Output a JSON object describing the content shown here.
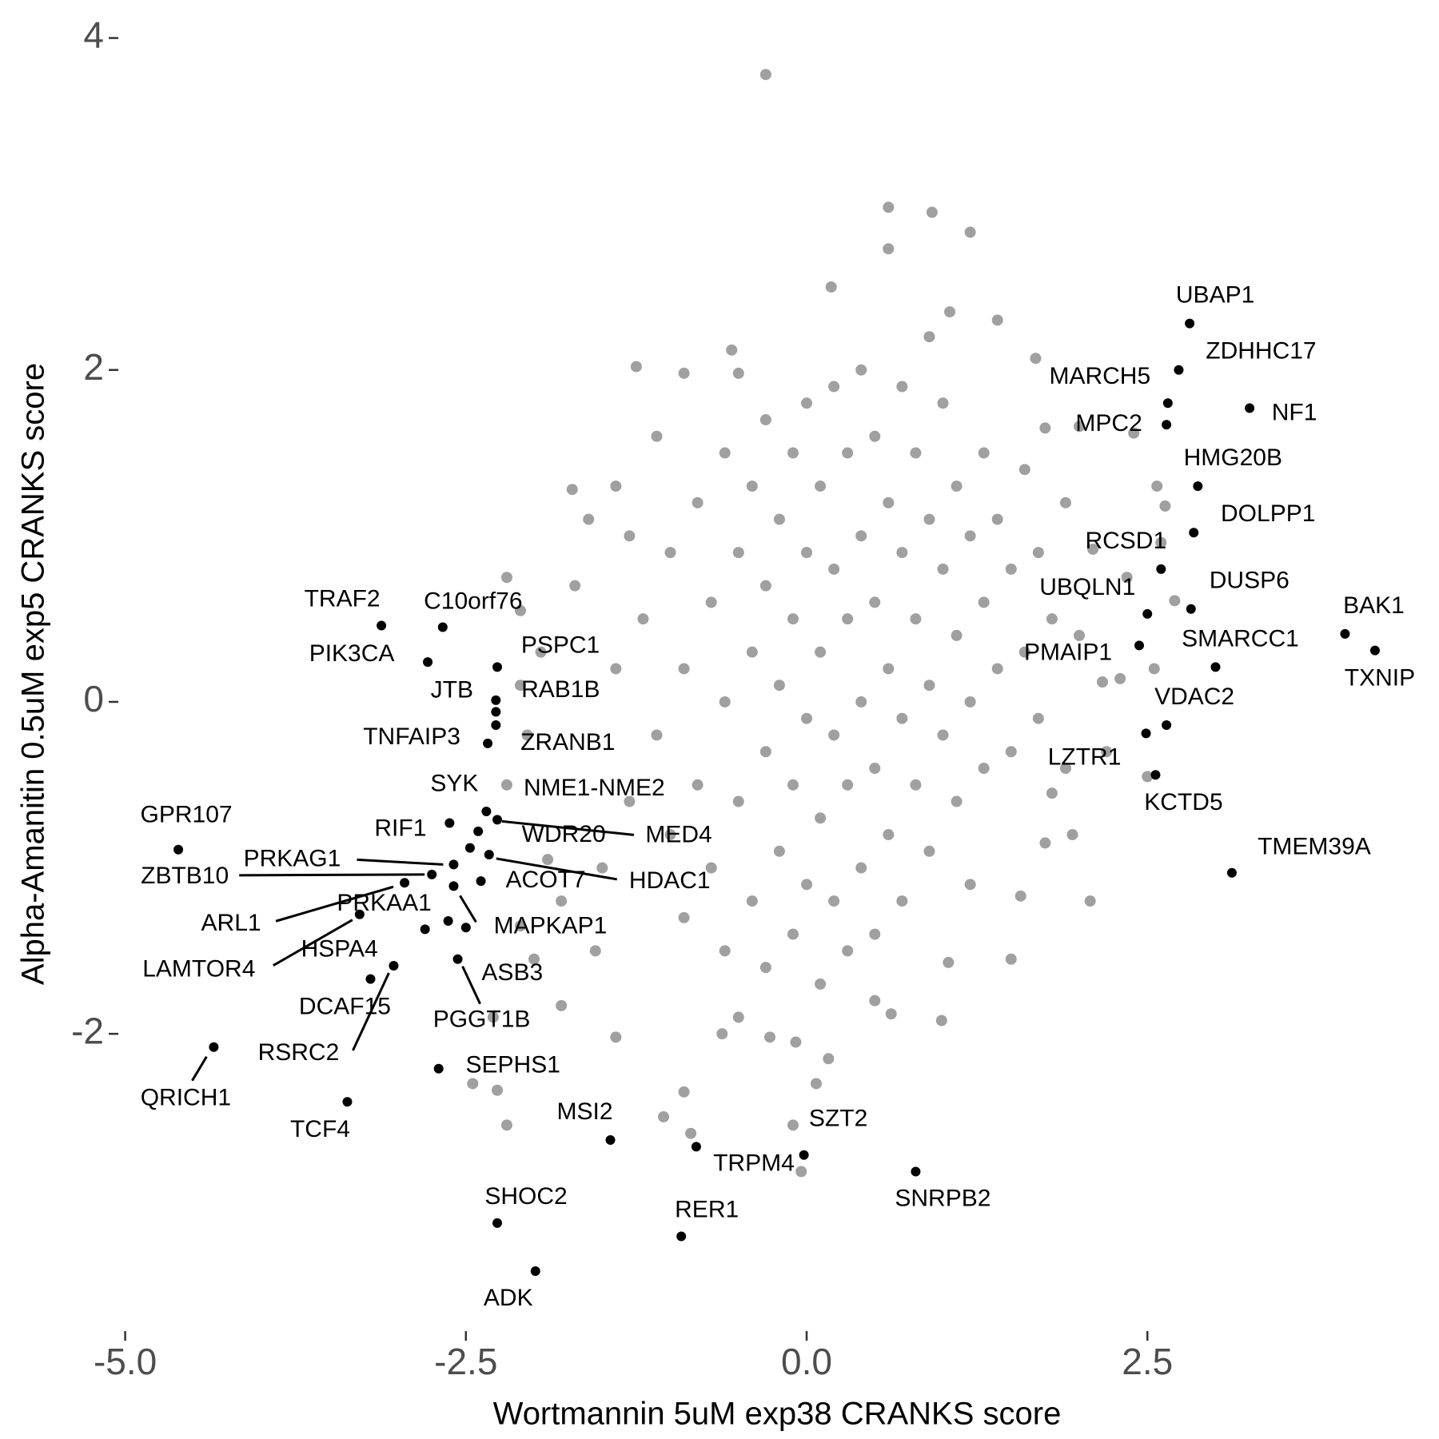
{
  "chart_data": {
    "type": "scatter",
    "x_label": "Wortmannin 5uM exp38 CRANKS score",
    "y_label": "Alpha-Amanitin 0.5uM exp5 CRANKS score",
    "xlim": [
      -5.1,
      4.45
    ],
    "ylim": [
      -3.6,
      4.1
    ],
    "xticks": [
      {
        "value": -5,
        "label": "-5.0"
      },
      {
        "value": -2.5,
        "label": "-2.5"
      },
      {
        "value": 0,
        "label": "0.0"
      },
      {
        "value": 2.5,
        "label": "2.5"
      }
    ],
    "yticks": [
      -2,
      0,
      2,
      4
    ],
    "grid": false,
    "series": [
      {
        "color": "#a0a0a0",
        "x": [
          -0.3,
          0.6,
          0.92,
          1.2,
          0.6,
          0.18,
          1.4,
          1.05,
          -1.25,
          -0.9,
          -0.55,
          -0.5,
          1.68,
          1.75,
          2.0,
          2.4,
          2.57,
          2.63,
          2.6,
          2.1,
          2.35,
          2.7,
          2.55,
          2.17,
          2.3,
          2.2,
          2.5,
          1.8,
          1.75,
          1.95,
          2.08,
          1.5,
          1.57,
          1.04,
          0.99,
          0.62,
          0.16,
          -0.08,
          0.07,
          -0.27,
          -0.62,
          -0.9,
          -1.05,
          -1.4,
          -1.8,
          -2.0,
          -2.3,
          -2.45,
          -2.27,
          -2.2,
          -1.55,
          -1.8,
          -2.1,
          -1.9,
          -2.2,
          -2.05,
          -1.95,
          -2.1,
          -2.2,
          -2.1,
          -1.7,
          -1.6,
          -1.72,
          -1.4,
          -0.1,
          -0.04,
          -0.85,
          -1.2,
          -1.1,
          -1,
          -1,
          -0.9,
          -0.9,
          -0.8,
          -0.8,
          -0.7,
          -0.7,
          -0.6,
          -0.6,
          -0.6,
          -0.5,
          -0.5,
          -0.4,
          -0.4,
          -0.4,
          -0.3,
          -0.3,
          -0.3,
          -0.3,
          -0.2,
          -0.2,
          -0.2,
          -0.1,
          -0.1,
          -0.1,
          -0.1,
          0,
          0,
          0,
          0,
          0.1,
          0.1,
          0.1,
          0.1,
          0.2,
          0.2,
          0.2,
          0.2,
          0.3,
          0.3,
          0.3,
          0.3,
          0.4,
          0.4,
          0.4,
          0.4,
          0.5,
          0.5,
          0.5,
          0.5,
          0.6,
          0.6,
          0.6,
          0.7,
          0.7,
          0.7,
          0.7,
          0.8,
          0.8,
          0.8,
          0.9,
          0.9,
          0.9,
          1,
          1,
          1,
          1.1,
          1.1,
          1.1,
          1.2,
          1.2,
          1.3,
          1.3,
          1.3,
          1.4,
          1.4,
          1.5,
          1.5,
          1.6,
          1.6,
          1.7,
          1.7,
          1.8,
          -1.3,
          -1.4,
          -1.3,
          -1.5,
          1.9,
          1.9,
          2,
          -0.5,
          0.5,
          1.2,
          -1.1,
          0.9
        ],
        "values": [
          3.78,
          2.98,
          2.95,
          2.83,
          2.73,
          2.5,
          2.3,
          2.35,
          2.02,
          1.98,
          2.12,
          1.98,
          2.07,
          1.65,
          1.66,
          1.62,
          1.3,
          1.18,
          0.96,
          0.92,
          0.75,
          0.61,
          0.2,
          0.12,
          0.14,
          -0.3,
          -0.45,
          -0.55,
          -0.85,
          -0.8,
          -1.2,
          -1.55,
          -1.17,
          -1.57,
          -1.92,
          -1.88,
          -2.15,
          -2.05,
          -2.3,
          -2.02,
          -2.0,
          -2.35,
          -2.5,
          -2.02,
          -1.83,
          -1.55,
          -1.9,
          -2.3,
          -2.34,
          -2.55,
          -1.5,
          -1.2,
          -1.35,
          -0.95,
          -0.5,
          -0.2,
          0.3,
          0.1,
          0.75,
          0.55,
          0.7,
          1.1,
          1.28,
          1.3,
          -2.55,
          -2.83,
          -2.6,
          0.5,
          -0.2,
          0.9,
          -0.8,
          0.2,
          -1.3,
          1.2,
          -0.5,
          0.6,
          -1,
          1.5,
          0,
          -1.5,
          0.9,
          -0.6,
          1.3,
          0.3,
          -1.2,
          1.7,
          0.7,
          -0.3,
          -1.6,
          1.1,
          0.1,
          -0.9,
          1.5,
          0.5,
          -0.5,
          -1.4,
          1.8,
          0.9,
          -0.1,
          -1.1,
          1.3,
          0.3,
          -0.7,
          -1.7,
          1.9,
          0.8,
          -0.2,
          -1.2,
          1.5,
          0.5,
          -0.5,
          -1.5,
          2,
          1,
          0,
          -1,
          1.6,
          0.6,
          -0.4,
          -1.4,
          1.2,
          0.2,
          -0.8,
          1.9,
          0.9,
          -0.1,
          -1.2,
          1.5,
          0.5,
          -0.5,
          1.1,
          0.1,
          -0.9,
          1.8,
          0.8,
          -0.2,
          1.3,
          0.4,
          -0.6,
          1,
          0,
          1.5,
          0.6,
          -0.4,
          1.1,
          0.2,
          0.8,
          -0.3,
          1.4,
          0.3,
          0.9,
          -0.1,
          0.5,
          1,
          0.2,
          -0.6,
          -1,
          1.2,
          -0.4,
          0.4,
          -1.9,
          -1.8,
          -1.1,
          1.6,
          2.2
        ]
      },
      {
        "color": "#000000",
        "labels": [
          "UBAP1",
          "ZDHHC17",
          "MARCH5",
          "NF1",
          "MPC2",
          "HMG20B",
          "DOLPP1",
          "RCSD1",
          "DUSP6",
          "UBQLN1",
          "BAK1",
          "PMAIP1",
          "SMARCC1",
          "TXNIP",
          "VDAC2",
          "LZTR1",
          "KCTD5",
          "TMEM39A",
          "SNRPB2",
          "SZT2",
          "TRPM4",
          "RER1",
          "MSI2",
          "SHOC2",
          "ADK",
          "SEPHS1",
          "TCF4",
          "QRICH1",
          "RSRC2",
          "DCAF15",
          "HSPA4",
          "LAMTOR4",
          "ARL1",
          "ZBTB10",
          "PRKAG1",
          "PRKAA1",
          "MAPKAP1",
          "ASB3",
          "PGGT1B",
          "ACOT7",
          "HDAC1",
          "MED4",
          "WDR20",
          "NME1-NME2",
          "SYK",
          "RIF1",
          "ZRANB1",
          "TNFAIP3",
          "JTB",
          "RAB1B",
          "PSPC1",
          "PIK3CA",
          "TRAF2",
          "C10orf76",
          "GPR107"
        ],
        "x": [
          2.81,
          2.73,
          2.65,
          3.25,
          2.64,
          2.87,
          2.84,
          2.6,
          2.82,
          2.5,
          3.95,
          2.44,
          3.0,
          4.17,
          2.64,
          2.49,
          2.56,
          3.12,
          0.8,
          -0.02,
          -0.81,
          -0.92,
          -1.44,
          -2.27,
          -1.99,
          -2.7,
          -3.37,
          -4.35,
          -3.03,
          -3.2,
          -2.8,
          -3.28,
          -2.95,
          -2.75,
          -2.59,
          -2.63,
          -2.59,
          -2.5,
          -2.56,
          -2.39,
          -2.33,
          -2.27,
          -2.41,
          -2.35,
          -2.62,
          -2.47,
          -2.28,
          -2.34,
          -2.28,
          -2.28,
          -2.27,
          -2.78,
          -3.12,
          -2.67,
          -4.61
        ],
        "values": [
          2.28,
          2.0,
          1.8,
          1.77,
          1.67,
          1.3,
          1.02,
          0.8,
          0.56,
          0.53,
          0.41,
          0.34,
          0.21,
          0.31,
          -0.14,
          -0.19,
          -0.44,
          -1.03,
          -2.83,
          -2.73,
          -2.68,
          -3.22,
          -2.64,
          -3.14,
          -3.43,
          -2.21,
          -2.41,
          -2.08,
          -1.59,
          -1.67,
          -1.37,
          -1.28,
          -1.09,
          -1.04,
          -0.98,
          -1.32,
          -1.11,
          -1.36,
          -1.55,
          -1.08,
          -0.92,
          -0.71,
          -0.78,
          -0.66,
          -0.73,
          -0.88,
          -0.14,
          -0.25,
          -0.06,
          0.01,
          0.21,
          0.24,
          0.46,
          0.45,
          -0.89
        ]
      }
    ]
  }
}
